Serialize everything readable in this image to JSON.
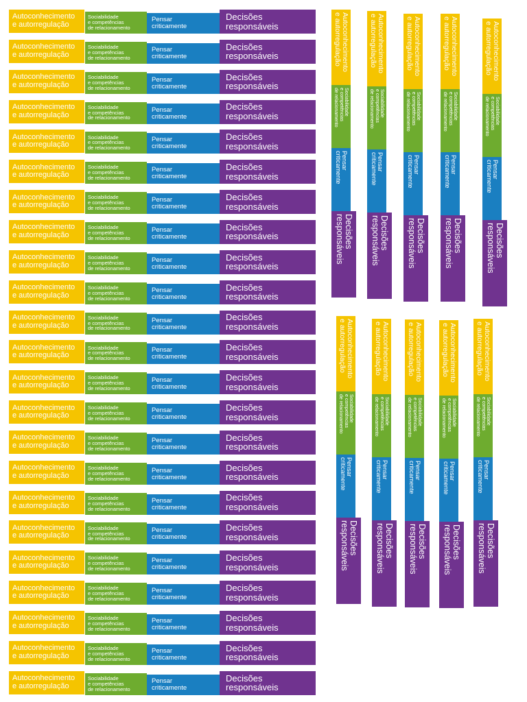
{
  "card": {
    "autoconhecimento": {
      "line1": "Autoconhecimento",
      "line2": "e autorregulação"
    },
    "sociabilidade": {
      "line1": "Sociabilidade",
      "line2": "e competências",
      "line3": "de relacionamento"
    },
    "pensar": {
      "line1": "Pensar",
      "line2": "criticamente"
    },
    "decisoes": {
      "line1": "Decisões",
      "line2": "responsáveis"
    }
  },
  "colors": {
    "yellow": "#f5c400",
    "green": "#6eac2f",
    "blue": "#1a7fc1",
    "purple": "#70338f"
  },
  "layout": {
    "horizontal_strip_count": 23,
    "vertical_strip_count": 10
  }
}
